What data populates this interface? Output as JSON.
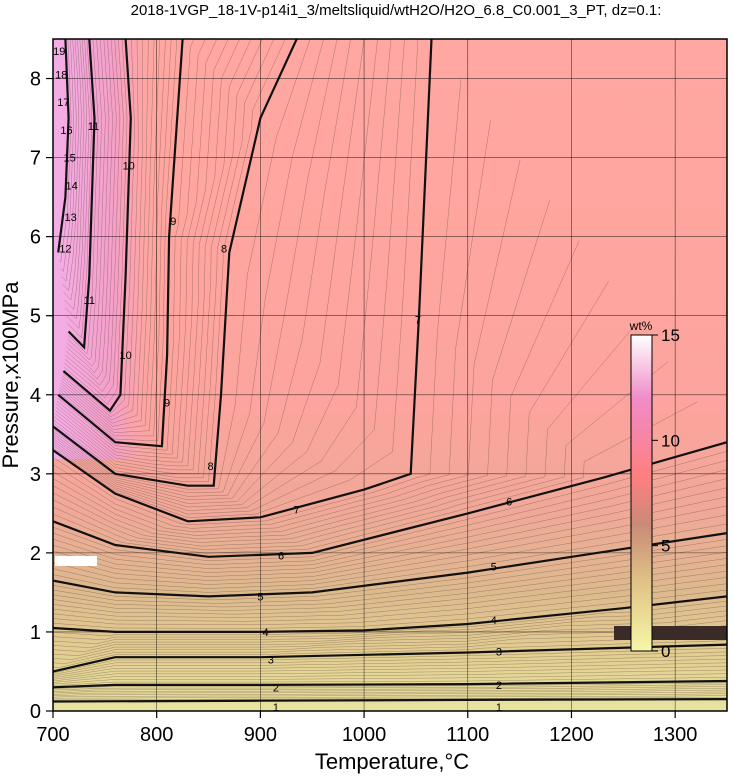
{
  "chart_data": {
    "type": "contour",
    "title": "2018-1VGP_18-1V-p14i1_3/meltsliquid/wtH2O/H2O_6.8_C0.001_3_PT, dz=0.1:",
    "xlabel": "Temperature,°C",
    "ylabel": "Pressure,x100MPa",
    "xlim": [
      700,
      1350
    ],
    "ylim": [
      0,
      8.5
    ],
    "x_ticks": [
      700,
      800,
      900,
      1000,
      1100,
      1200,
      1300
    ],
    "y_ticks": [
      0,
      1,
      2,
      3,
      4,
      5,
      6,
      7,
      8
    ],
    "grid": true,
    "colorbar": {
      "title": "wt%",
      "range": [
        0,
        15
      ],
      "ticks": [
        0,
        5,
        10,
        15
      ],
      "colors": [
        "#f7f7a8",
        "#e0c285",
        "#c98b78",
        "#ff7f7f",
        "#f08cc8",
        "#ffffff"
      ]
    },
    "contours": [
      {
        "level": "1",
        "points": [
          [
            700,
            0.12
          ],
          [
            900,
            0.13
          ],
          [
            1100,
            0.14
          ],
          [
            1350,
            0.15
          ]
        ]
      },
      {
        "level": "2",
        "points": [
          [
            700,
            0.3
          ],
          [
            760,
            0.33
          ],
          [
            900,
            0.33
          ],
          [
            1100,
            0.34
          ],
          [
            1350,
            0.38
          ]
        ]
      },
      {
        "level": "3",
        "points": [
          [
            700,
            0.5
          ],
          [
            760,
            0.68
          ],
          [
            900,
            0.68
          ],
          [
            1100,
            0.74
          ],
          [
            1350,
            0.84
          ]
        ]
      },
      {
        "level": "4",
        "points": [
          [
            700,
            1.05
          ],
          [
            760,
            1.0
          ],
          [
            900,
            1.0
          ],
          [
            1000,
            1.02
          ],
          [
            1100,
            1.1
          ],
          [
            1250,
            1.3
          ],
          [
            1350,
            1.45
          ]
        ]
      },
      {
        "level": "5",
        "points": [
          [
            700,
            1.65
          ],
          [
            760,
            1.5
          ],
          [
            850,
            1.45
          ],
          [
            950,
            1.5
          ],
          [
            1100,
            1.75
          ],
          [
            1250,
            2.05
          ],
          [
            1350,
            2.25
          ]
        ]
      },
      {
        "level": "6",
        "points": [
          [
            700,
            2.4
          ],
          [
            760,
            2.1
          ],
          [
            850,
            1.95
          ],
          [
            950,
            2.0
          ],
          [
            1100,
            2.5
          ],
          [
            1230,
            2.95
          ],
          [
            1350,
            3.4
          ]
        ]
      },
      {
        "level": "7",
        "points": [
          [
            700,
            3.3
          ],
          [
            760,
            2.75
          ],
          [
            830,
            2.4
          ],
          [
            900,
            2.45
          ],
          [
            1000,
            2.8
          ],
          [
            1045,
            3.0
          ],
          [
            1053,
            5.0
          ],
          [
            1065,
            8.5
          ]
        ]
      },
      {
        "level": "8",
        "points": [
          [
            700,
            3.6
          ],
          [
            760,
            3.0
          ],
          [
            830,
            2.85
          ],
          [
            855,
            2.85
          ],
          [
            862,
            4.0
          ],
          [
            870,
            5.8
          ],
          [
            900,
            7.5
          ],
          [
            935,
            8.5
          ]
        ]
      },
      {
        "level": "9",
        "points": [
          [
            705,
            4.0
          ],
          [
            760,
            3.4
          ],
          [
            805,
            3.35
          ],
          [
            810,
            4.5
          ],
          [
            812,
            6.0
          ],
          [
            825,
            8.5
          ]
        ]
      },
      {
        "level": "10",
        "points": [
          [
            710,
            4.3
          ],
          [
            755,
            3.8
          ],
          [
            765,
            4.0
          ],
          [
            770,
            5.5
          ],
          [
            775,
            7.5
          ],
          [
            770,
            8.5
          ]
        ]
      },
      {
        "level": "11",
        "points": [
          [
            715,
            4.8
          ],
          [
            730,
            4.6
          ],
          [
            735,
            5.5
          ],
          [
            740,
            7.5
          ],
          [
            735,
            8.5
          ]
        ]
      },
      {
        "level": "12",
        "points": [
          [
            705,
            5.8
          ],
          [
            712,
            6.5
          ],
          [
            715,
            7.5
          ],
          [
            712,
            8.5
          ]
        ]
      }
    ],
    "contour_labels": [
      {
        "text": "1",
        "x": 915,
        "y": 0.05
      },
      {
        "text": "1",
        "x": 1130,
        "y": 0.05
      },
      {
        "text": "2",
        "x": 915,
        "y": 0.3
      },
      {
        "text": "2",
        "x": 1130,
        "y": 0.33
      },
      {
        "text": "3",
        "x": 910,
        "y": 0.65
      },
      {
        "text": "3",
        "x": 1130,
        "y": 0.75
      },
      {
        "text": "4",
        "x": 905,
        "y": 1.0
      },
      {
        "text": "4",
        "x": 1125,
        "y": 1.15
      },
      {
        "text": "5",
        "x": 900,
        "y": 1.45
      },
      {
        "text": "5",
        "x": 1125,
        "y": 1.83
      },
      {
        "text": "6",
        "x": 920,
        "y": 1.97
      },
      {
        "text": "6",
        "x": 1140,
        "y": 2.65
      },
      {
        "text": "7",
        "x": 935,
        "y": 2.55
      },
      {
        "text": "7",
        "x": 1052,
        "y": 4.95
      },
      {
        "text": "8",
        "x": 852,
        "y": 3.1
      },
      {
        "text": "8",
        "x": 865,
        "y": 5.85
      },
      {
        "text": "9",
        "x": 810,
        "y": 3.9
      },
      {
        "text": "9",
        "x": 816,
        "y": 6.2
      },
      {
        "text": "10",
        "x": 770,
        "y": 4.5
      },
      {
        "text": "10",
        "x": 773,
        "y": 6.9
      },
      {
        "text": "11",
        "x": 735,
        "y": 5.2
      },
      {
        "text": "11",
        "x": 739,
        "y": 7.4
      },
      {
        "text": "12",
        "x": 712,
        "y": 5.85
      },
      {
        "text": "13",
        "x": 717,
        "y": 6.25
      },
      {
        "text": "14",
        "x": 718,
        "y": 6.65
      },
      {
        "text": "15",
        "x": 716,
        "y": 7.0
      },
      {
        "text": "16",
        "x": 713,
        "y": 7.35
      },
      {
        "text": "17",
        "x": 710,
        "y": 7.7
      },
      {
        "text": "18",
        "x": 708,
        "y": 8.05
      },
      {
        "text": "19",
        "x": 706,
        "y": 8.35
      }
    ]
  }
}
